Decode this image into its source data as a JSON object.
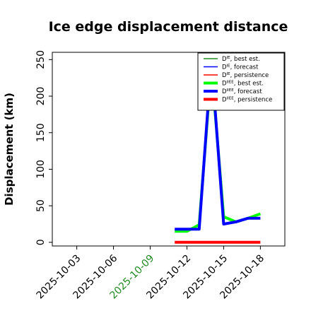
{
  "chart_data": {
    "type": "line",
    "title": "Ice edge displacement distance",
    "xlabel": "",
    "ylabel": "Displacement (km)",
    "ylim": [
      -5,
      260
    ],
    "yticks": [
      0,
      50,
      100,
      150,
      200,
      250
    ],
    "xlim": [
      "2025-10-01",
      "2025-10-20"
    ],
    "xticks": [
      {
        "date": "2025-10-03",
        "label": "2025-10-03",
        "color": "#000000"
      },
      {
        "date": "2025-10-06",
        "label": "2025-10-06",
        "color": "#000000"
      },
      {
        "date": "2025-10-09",
        "label": "2025-10-09",
        "color": "#228b22"
      },
      {
        "date": "2025-10-12",
        "label": "2025-10-12",
        "color": "#000000"
      },
      {
        "date": "2025-10-15",
        "label": "2025-10-15",
        "color": "#000000"
      },
      {
        "date": "2025-10-18",
        "label": "2025-10-18",
        "color": "#000000"
      }
    ],
    "grid": false,
    "legend_position": "top-right",
    "series": [
      {
        "name": "best est.",
        "prefix": "D",
        "sup": "IE",
        "color": "#228b22",
        "width": "thin",
        "x": [],
        "y": []
      },
      {
        "name": "forecast",
        "prefix": "D",
        "sup": "IE",
        "color": "#0000ff",
        "width": "thin",
        "x": [],
        "y": []
      },
      {
        "name": "persistence",
        "prefix": "D",
        "sup": "IE",
        "color": "#ff0000",
        "width": "thin",
        "x": [],
        "y": []
      },
      {
        "name": "best est.",
        "prefix": "D",
        "sup": "IIEE",
        "color": "#00ff00",
        "width": "thick",
        "x": [
          "2025-10-11",
          "2025-10-12",
          "2025-10-13",
          "2025-10-14",
          "2025-10-15",
          "2025-10-16",
          "2025-10-17",
          "2025-10-18"
        ],
        "y": [
          15,
          15,
          24,
          240,
          35,
          28,
          33,
          39
        ]
      },
      {
        "name": "forecast",
        "prefix": "D",
        "sup": "IIEE",
        "color": "#0000ff",
        "width": "thick",
        "x": [
          "2025-10-11",
          "2025-10-12",
          "2025-10-13",
          "2025-10-14",
          "2025-10-15",
          "2025-10-16",
          "2025-10-17",
          "2025-10-18"
        ],
        "y": [
          18,
          18,
          18,
          250,
          25,
          28,
          33,
          33
        ]
      },
      {
        "name": "persistence",
        "prefix": "D",
        "sup": "IIEE",
        "color": "#ff0000",
        "width": "thick",
        "x": [
          "2025-10-11",
          "2025-10-12",
          "2025-10-13",
          "2025-10-14",
          "2025-10-15",
          "2025-10-16",
          "2025-10-17",
          "2025-10-18"
        ],
        "y": [
          0,
          0,
          0,
          0,
          0,
          0,
          0,
          0
        ]
      }
    ]
  }
}
